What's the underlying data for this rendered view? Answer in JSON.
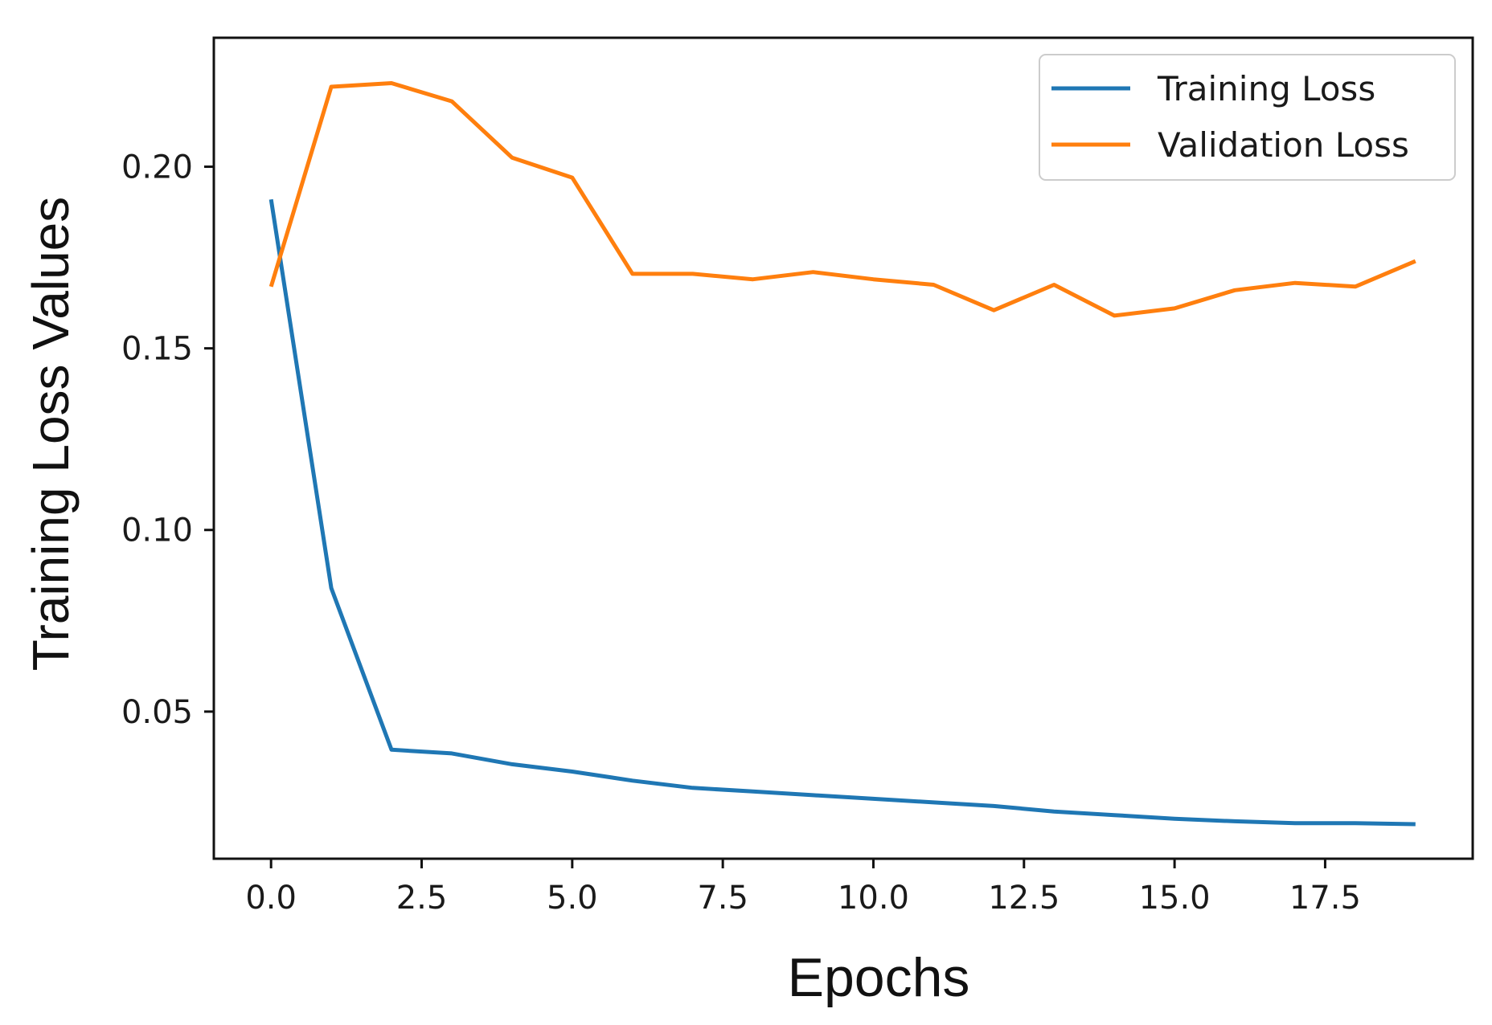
{
  "chart_data": {
    "type": "line",
    "title": "",
    "xlabel": "Epochs",
    "ylabel": "Training Loss Values",
    "xlim": [
      -0.95,
      19.95
    ],
    "ylim": [
      0.0095,
      0.2355
    ],
    "xticks": [
      0,
      2.5,
      5,
      7.5,
      10,
      12.5,
      15,
      17.5
    ],
    "xtick_labels": [
      "0.0",
      "2.5",
      "5.0",
      "7.5",
      "10.0",
      "12.5",
      "15.0",
      "17.5"
    ],
    "yticks": [
      0.05,
      0.1,
      0.15,
      0.2
    ],
    "ytick_labels": [
      "0.05",
      "0.10",
      "0.15",
      "0.20"
    ],
    "grid": false,
    "legend_position": "top-right",
    "x": [
      0,
      1,
      2,
      3,
      4,
      5,
      6,
      7,
      8,
      9,
      10,
      11,
      12,
      13,
      14,
      15,
      16,
      17,
      18,
      19
    ],
    "series": [
      {
        "name": "Training Loss",
        "color": "#1f77b4",
        "values": [
          0.191,
          0.084,
          0.0395,
          0.0385,
          0.0355,
          0.0335,
          0.031,
          0.029,
          0.028,
          0.027,
          0.026,
          0.025,
          0.024,
          0.0225,
          0.0215,
          0.0205,
          0.0198,
          0.0193,
          0.0193,
          0.019
        ]
      },
      {
        "name": "Validation Loss",
        "color": "#ff7f0e",
        "values": [
          0.167,
          0.222,
          0.223,
          0.218,
          0.2025,
          0.197,
          0.1705,
          0.1705,
          0.169,
          0.171,
          0.169,
          0.1675,
          0.1605,
          0.1675,
          0.159,
          0.161,
          0.166,
          0.168,
          0.167,
          0.174
        ]
      }
    ]
  }
}
